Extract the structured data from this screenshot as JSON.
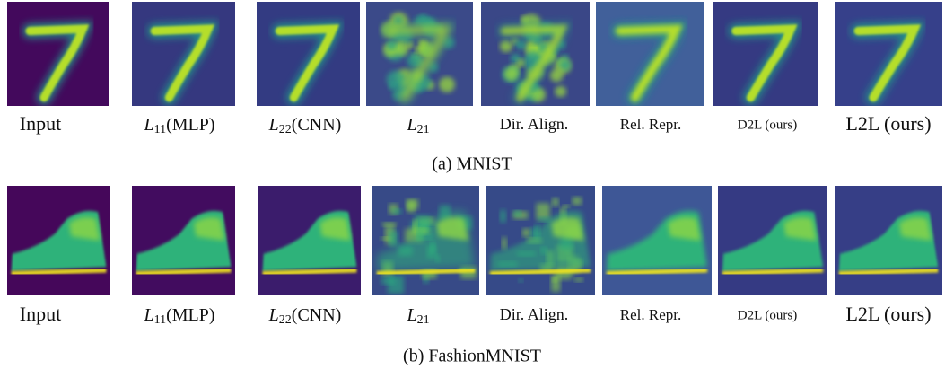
{
  "figure": {
    "rows": [
      {
        "labels": [
          {
            "text": "Input"
          },
          {
            "main": "L",
            "sub": "11",
            "rest": "(MLP)"
          },
          {
            "main": "L",
            "sub": "22",
            "rest": "(CNN)"
          },
          {
            "main": "L",
            "sub": "21"
          },
          {
            "text": "Dir. Align."
          },
          {
            "text": "Rel. Repr."
          },
          {
            "text": "D2L (ours)"
          },
          {
            "text": "L2L (ours)"
          }
        ],
        "caption": "(a) MNIST"
      },
      {
        "labels": [
          {
            "text": "Input"
          },
          {
            "main": "L",
            "sub": "11",
            "rest": "(MLP)"
          },
          {
            "main": "L",
            "sub": "22",
            "rest": "(CNN)"
          },
          {
            "main": "L",
            "sub": "21"
          },
          {
            "text": "Dir. Align."
          },
          {
            "text": "Rel. Repr."
          },
          {
            "text": "D2L (ours)"
          },
          {
            "text": "L2L (ours)"
          }
        ],
        "caption": "(b) FashionMNIST"
      }
    ]
  }
}
